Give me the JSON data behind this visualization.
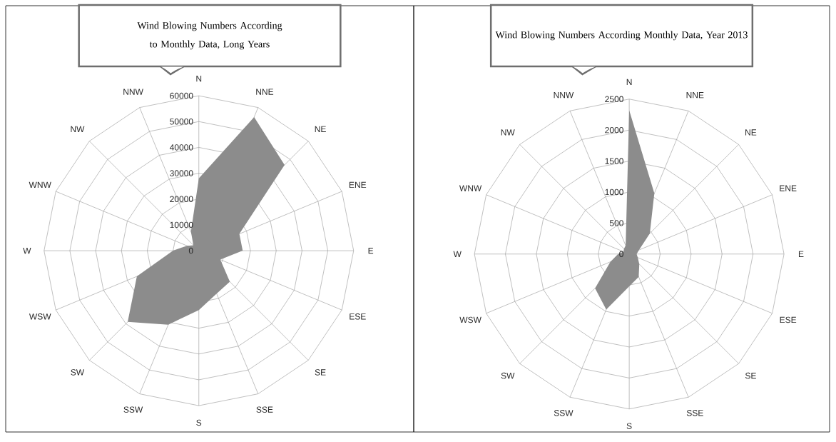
{
  "chart_data": [
    {
      "type": "radar",
      "title": "Wind Blowing Numbers According to Monthly Data, Long Years",
      "categories": [
        "N",
        "NNE",
        "NE",
        "ENE",
        "E",
        "ESE",
        "SE",
        "SSE",
        "S",
        "SSW",
        "SW",
        "WSW",
        "W",
        "WNW",
        "NW",
        "NNW"
      ],
      "series": [
        {
          "color": "#8c8c8c",
          "values": [
            28000,
            56000,
            47000,
            17000,
            17000,
            9000,
            17000,
            18000,
            23000,
            31000,
            39000,
            26000,
            10000,
            5000,
            3000,
            8000
          ]
        }
      ],
      "ylim": [
        0,
        60000
      ],
      "yticks": [
        0,
        10000,
        20000,
        30000,
        40000,
        50000,
        60000
      ],
      "grid": true
    },
    {
      "type": "radar",
      "title": "Wind Blowing Numbers According  Monthly Data, Year 2013",
      "categories": [
        "N",
        "NNE",
        "NE",
        "ENE",
        "E",
        "ESE",
        "SE",
        "SSE",
        "S",
        "SSW",
        "SW",
        "WSW",
        "W",
        "WNW",
        "NW",
        "NNW"
      ],
      "series": [
        {
          "color": "#8c8c8c",
          "values": [
            2320,
            1060,
            470,
            170,
            120,
            150,
            230,
            400,
            520,
            970,
            780,
            330,
            180,
            100,
            120,
            150
          ]
        }
      ],
      "ylim": [
        0,
        2500
      ],
      "yticks": [
        0,
        500,
        1000,
        1500,
        2000,
        2500
      ],
      "grid": true
    }
  ]
}
